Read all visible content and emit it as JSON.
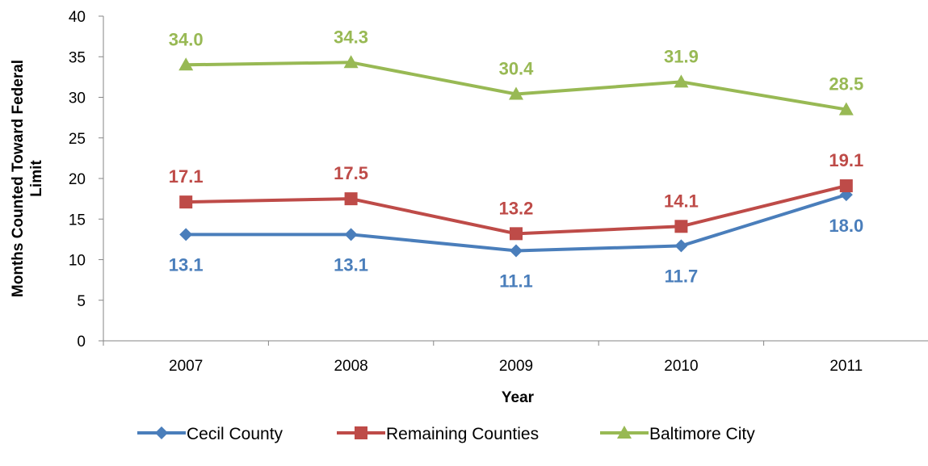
{
  "chart_data": {
    "type": "line",
    "title": "",
    "xlabel": "Year",
    "ylabel": "Months Counted Toward Federal Limit",
    "ylim": [
      0,
      40
    ],
    "yticks": [
      "0",
      "5",
      "10",
      "15",
      "20",
      "25",
      "30",
      "35",
      "40"
    ],
    "categories": [
      "2007",
      "2008",
      "2009",
      "2010",
      "2011"
    ],
    "grid": false,
    "legend_position": "bottom",
    "series": [
      {
        "name": "Cecil County",
        "values": [
          13.1,
          13.1,
          11.1,
          11.7,
          18.0
        ],
        "labels": [
          "13.1",
          "13.1",
          "11.1",
          "11.7",
          "18.0"
        ],
        "color": "#4A7EBB",
        "marker": "diamond",
        "label_position": "below"
      },
      {
        "name": "Remaining Counties",
        "values": [
          17.1,
          17.5,
          13.2,
          14.1,
          19.1
        ],
        "labels": [
          "17.1",
          "17.5",
          "13.2",
          "14.1",
          "19.1"
        ],
        "color": "#BE4B48",
        "marker": "square",
        "label_position": "above"
      },
      {
        "name": "Baltimore City",
        "values": [
          34.0,
          34.3,
          30.4,
          31.9,
          28.5
        ],
        "labels": [
          "34.0",
          "34.3",
          "30.4",
          "31.9",
          "28.5"
        ],
        "color": "#98B954",
        "marker": "triangle",
        "label_position": "above"
      }
    ]
  }
}
